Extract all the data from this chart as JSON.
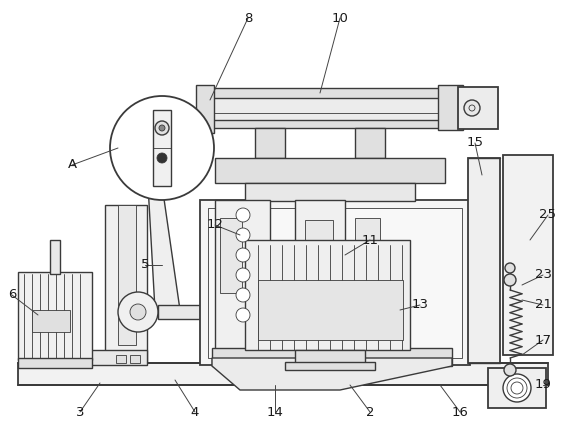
{
  "background_color": "#ffffff",
  "line_color": "#3a3a3a",
  "fig_width": 5.7,
  "fig_height": 4.26,
  "dpi": 100
}
